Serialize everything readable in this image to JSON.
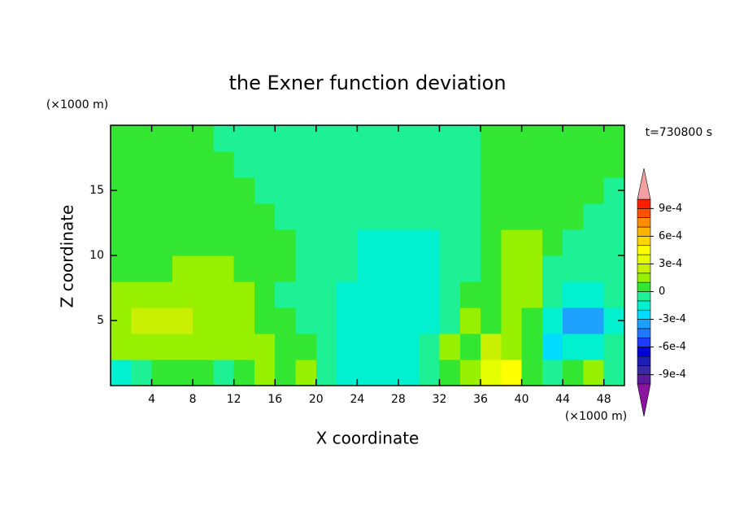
{
  "chart_data": {
    "type": "contour",
    "title": "the Exner function deviation",
    "x_label": "X coordinate",
    "y_label": "Z coordinate",
    "x_unit_label": "(×1000 m)",
    "y_unit_label": "(×1000 m)",
    "annotation": "t=730800 s",
    "xlim": [
      0,
      50
    ],
    "ylim": [
      0,
      20
    ],
    "xticks": [
      4,
      8,
      12,
      16,
      20,
      24,
      28,
      32,
      36,
      40,
      44,
      48
    ],
    "yticks": [
      5,
      10,
      15
    ],
    "x": [
      1,
      3,
      5,
      7,
      9,
      11,
      13,
      15,
      17,
      19,
      21,
      23,
      25,
      27,
      29,
      31,
      33,
      35,
      37,
      39,
      41,
      43,
      45,
      47,
      49
    ],
    "y": [
      1,
      3,
      5,
      7,
      9,
      11,
      13,
      15,
      17,
      19
    ],
    "z": [
      [
        -0.00015,
        -5e-05,
        5e-05,
        5e-05,
        5e-05,
        -5e-05,
        5e-05,
        0.00015,
        5e-05,
        0.00015,
        -5e-05,
        -0.00015,
        -0.00015,
        -0.00015,
        -0.00015,
        -5e-05,
        5e-05,
        0.00015,
        0.00035,
        0.00045,
        5e-05,
        -5e-05,
        5e-05,
        0.00015,
        -5e-05
      ],
      [
        0.00015,
        0.00015,
        0.00015,
        0.00015,
        0.00015,
        0.00015,
        0.00015,
        0.00015,
        5e-05,
        5e-05,
        -5e-05,
        -0.00015,
        -0.00015,
        -0.00015,
        -0.00015,
        -5e-05,
        0.00015,
        5e-05,
        0.00025,
        0.00015,
        5e-05,
        -0.00025,
        -0.00015,
        -0.00015,
        -5e-05
      ],
      [
        0.00015,
        0.00025,
        0.00025,
        0.00025,
        0.00015,
        0.00015,
        0.00015,
        5e-05,
        5e-05,
        -5e-05,
        -5e-05,
        -0.00015,
        -0.00015,
        -0.00015,
        -0.00015,
        -0.00015,
        -5e-05,
        0.00015,
        5e-05,
        0.00015,
        5e-05,
        -0.00015,
        -0.00035,
        -0.00035,
        -0.00015
      ],
      [
        0.00015,
        0.00015,
        0.00015,
        0.00015,
        0.00015,
        0.00015,
        0.00015,
        5e-05,
        -5e-05,
        -5e-05,
        -5e-05,
        -0.00015,
        -0.00015,
        -0.00015,
        -0.00015,
        -0.00015,
        -5e-05,
        5e-05,
        5e-05,
        0.00015,
        0.00015,
        -5e-05,
        -0.00015,
        -0.00015,
        -5e-05
      ],
      [
        5e-05,
        5e-05,
        5e-05,
        0.00015,
        0.00015,
        0.00015,
        5e-05,
        5e-05,
        5e-05,
        -5e-05,
        -5e-05,
        -5e-05,
        -0.00015,
        -0.00015,
        -0.00015,
        -0.00015,
        -5e-05,
        -5e-05,
        5e-05,
        0.00015,
        0.00015,
        -5e-05,
        -5e-05,
        -5e-05,
        -5e-05
      ],
      [
        5e-05,
        5e-05,
        5e-05,
        5e-05,
        5e-05,
        5e-05,
        5e-05,
        5e-05,
        5e-05,
        -5e-05,
        -5e-05,
        -5e-05,
        -0.00015,
        -0.00015,
        -0.00015,
        -0.00015,
        -5e-05,
        -5e-05,
        5e-05,
        0.00015,
        0.00015,
        5e-05,
        -5e-05,
        -5e-05,
        -5e-05
      ],
      [
        5e-05,
        5e-05,
        5e-05,
        5e-05,
        5e-05,
        5e-05,
        5e-05,
        5e-05,
        -5e-05,
        -5e-05,
        -5e-05,
        -5e-05,
        -5e-05,
        -5e-05,
        -5e-05,
        -5e-05,
        -5e-05,
        -5e-05,
        5e-05,
        5e-05,
        5e-05,
        5e-05,
        5e-05,
        -5e-05,
        -5e-05
      ],
      [
        5e-05,
        5e-05,
        5e-05,
        5e-05,
        5e-05,
        5e-05,
        5e-05,
        -5e-05,
        -5e-05,
        -5e-05,
        -5e-05,
        -5e-05,
        -5e-05,
        -5e-05,
        -5e-05,
        -5e-05,
        -5e-05,
        -5e-05,
        5e-05,
        5e-05,
        5e-05,
        5e-05,
        5e-05,
        5e-05,
        -5e-05
      ],
      [
        5e-05,
        5e-05,
        5e-05,
        5e-05,
        5e-05,
        5e-05,
        -5e-05,
        -5e-05,
        -5e-05,
        -5e-05,
        -5e-05,
        -5e-05,
        -5e-05,
        -5e-05,
        -5e-05,
        -5e-05,
        -5e-05,
        -5e-05,
        5e-05,
        5e-05,
        5e-05,
        5e-05,
        5e-05,
        5e-05,
        5e-05
      ],
      [
        5e-05,
        5e-05,
        5e-05,
        5e-05,
        5e-05,
        -5e-05,
        -5e-05,
        -5e-05,
        -5e-05,
        -5e-05,
        -5e-05,
        -5e-05,
        -5e-05,
        -5e-05,
        -5e-05,
        -5e-05,
        -5e-05,
        -5e-05,
        5e-05,
        5e-05,
        5e-05,
        5e-05,
        5e-05,
        5e-05,
        5e-05
      ]
    ],
    "levels": [
      -0.001,
      -0.0009,
      -0.0008,
      -0.0007,
      -0.0006,
      -0.0005,
      -0.0004,
      -0.0003,
      -0.0002,
      -0.0001,
      0,
      0.0001,
      0.0002,
      0.0003,
      0.0004,
      0.0005,
      0.0006,
      0.0007,
      0.0008,
      0.0009,
      0.001
    ],
    "colors": [
      "#8c14a0",
      "#5a1a9c",
      "#3a2aa8",
      "#1e1eb4",
      "#0000d8",
      "#1e3cff",
      "#1e78ff",
      "#1ea0ff",
      "#00dcff",
      "#00f0d0",
      "#1ef096",
      "#32e632",
      "#96f000",
      "#c8f000",
      "#e6ff00",
      "#ffff00",
      "#ffd700",
      "#ffb400",
      "#ff8c00",
      "#ff5000",
      "#ff1e00",
      "#f4a0a0"
    ],
    "colorbar_ticks": [
      {
        "value": -0.0009,
        "label": "-9e-4"
      },
      {
        "value": -0.0006,
        "label": "-6e-4"
      },
      {
        "value": -0.0003,
        "label": "-3e-4"
      },
      0,
      {
        "value": 0.0003,
        "label": "3e-4"
      },
      {
        "value": 0.0006,
        "label": "6e-4"
      },
      {
        "value": 0.0009,
        "label": "9e-4"
      }
    ]
  }
}
